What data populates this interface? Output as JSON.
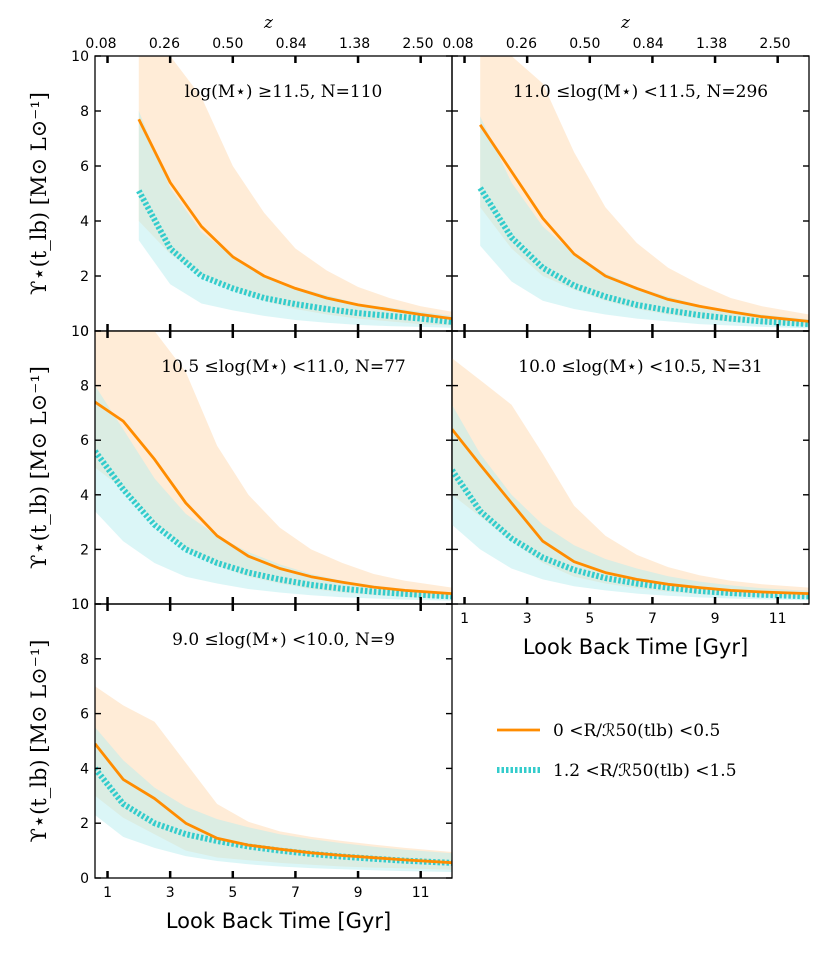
{
  "chart_data": {
    "type": "line",
    "top_axis_label": "z",
    "top_axis_ticks": [
      "0.08",
      "0.26",
      "0.50",
      "0.84",
      "1.38",
      "2.50"
    ],
    "xlabel": "Look Back Time [Gyr]",
    "ylabel": "ϒ⋆(t_lb) [M⊙ L⊙⁻¹]",
    "xlim": [
      0.6,
      12.0
    ],
    "ylim": [
      0,
      10
    ],
    "x_ticks": [
      1,
      3,
      5,
      7,
      9,
      11
    ],
    "x_tick_labels": [
      "1",
      "3",
      "5",
      "7",
      "9",
      "11"
    ],
    "y_ticks": [
      0,
      2,
      4,
      6,
      8,
      10
    ],
    "y_tick_labels": [
      "0",
      "2",
      "4",
      "6",
      "8",
      "10"
    ],
    "legend": [
      {
        "label": "0 <R/ℛ50(tlb) <0.5",
        "color": "#ff8c00",
        "style": "solid"
      },
      {
        "label": "1.2 <R/ℛ50(tlb) <1.5",
        "color": "#33cccc",
        "style": "dotted"
      }
    ],
    "colors": {
      "inner": "#ff8c00",
      "outer": "#33cccc",
      "inner_band": "#ffd9b0",
      "outer_band": "#b8eef0"
    },
    "panels": [
      {
        "title": "log(M⋆) ≥11.5, N=110",
        "x": [
          2.0,
          3.0,
          4.0,
          5.0,
          6.0,
          7.0,
          8.0,
          9.0,
          10.0,
          11.0,
          12.0
        ],
        "inner": [
          7.7,
          5.4,
          3.8,
          2.7,
          2.0,
          1.55,
          1.2,
          0.95,
          0.78,
          0.6,
          0.45
        ],
        "outer": [
          5.1,
          3.0,
          2.0,
          1.55,
          1.2,
          0.98,
          0.8,
          0.65,
          0.55,
          0.45,
          0.33
        ],
        "inner_lo": [
          4.0,
          2.8,
          2.0,
          1.5,
          1.1,
          0.8,
          0.6,
          0.45,
          0.35,
          0.25,
          0.2
        ],
        "inner_hi": [
          10.0,
          10.0,
          8.5,
          6.0,
          4.3,
          3.0,
          2.2,
          1.6,
          1.2,
          0.9,
          0.7
        ],
        "outer_lo": [
          3.3,
          1.7,
          1.0,
          0.75,
          0.55,
          0.4,
          0.3,
          0.22,
          0.18,
          0.15,
          0.12
        ],
        "outer_hi": [
          8.0,
          5.2,
          3.6,
          2.7,
          2.0,
          1.6,
          1.3,
          1.0,
          0.85,
          0.7,
          0.55
        ]
      },
      {
        "title": "11.0 ≤log(M⋆) <11.5, N=296",
        "x": [
          1.5,
          2.5,
          3.5,
          4.5,
          5.5,
          6.5,
          7.5,
          8.5,
          9.5,
          10.5,
          12.0
        ],
        "inner": [
          7.5,
          5.8,
          4.1,
          2.8,
          2.0,
          1.55,
          1.15,
          0.9,
          0.7,
          0.52,
          0.35
        ],
        "outer": [
          5.2,
          3.4,
          2.3,
          1.65,
          1.25,
          0.95,
          0.75,
          0.58,
          0.45,
          0.35,
          0.25
        ],
        "inner_lo": [
          4.5,
          3.0,
          2.0,
          1.5,
          1.1,
          0.8,
          0.6,
          0.45,
          0.33,
          0.25,
          0.18
        ],
        "inner_hi": [
          10.0,
          10.0,
          9.0,
          6.5,
          4.5,
          3.2,
          2.3,
          1.7,
          1.2,
          0.9,
          0.6
        ],
        "outer_lo": [
          3.1,
          1.8,
          1.1,
          0.8,
          0.6,
          0.45,
          0.35,
          0.25,
          0.2,
          0.15,
          0.1
        ],
        "outer_hi": [
          7.8,
          5.4,
          3.8,
          2.8,
          2.1,
          1.6,
          1.25,
          0.95,
          0.75,
          0.6,
          0.42
        ]
      },
      {
        "title": "10.5 ≤log(M⋆) <11.0, N=77",
        "x": [
          0.6,
          1.5,
          2.5,
          3.5,
          4.5,
          5.5,
          6.5,
          7.5,
          8.5,
          9.5,
          10.5,
          12.0
        ],
        "inner": [
          7.4,
          6.7,
          5.3,
          3.7,
          2.5,
          1.75,
          1.3,
          1.0,
          0.8,
          0.62,
          0.5,
          0.38
        ],
        "outer": [
          5.6,
          4.2,
          2.9,
          2.0,
          1.5,
          1.15,
          0.9,
          0.7,
          0.56,
          0.45,
          0.37,
          0.28
        ],
        "inner_lo": [
          5.0,
          4.2,
          3.0,
          2.0,
          1.4,
          1.0,
          0.75,
          0.55,
          0.42,
          0.33,
          0.26,
          0.2
        ],
        "inner_hi": [
          10.0,
          10.0,
          10.0,
          8.5,
          5.8,
          4.0,
          2.8,
          2.0,
          1.5,
          1.1,
          0.85,
          0.6
        ],
        "outer_lo": [
          3.4,
          2.3,
          1.5,
          1.0,
          0.75,
          0.55,
          0.42,
          0.32,
          0.25,
          0.2,
          0.16,
          0.12
        ],
        "outer_hi": [
          8.0,
          6.4,
          4.6,
          3.3,
          2.5,
          1.9,
          1.45,
          1.1,
          0.85,
          0.68,
          0.55,
          0.42
        ]
      },
      {
        "title": "10.0 ≤log(M⋆) <10.5, N=31",
        "x": [
          0.6,
          1.5,
          2.5,
          3.5,
          4.5,
          5.5,
          6.5,
          7.5,
          8.5,
          9.5,
          10.5,
          12.0
        ],
        "inner": [
          6.4,
          5.1,
          3.7,
          2.3,
          1.55,
          1.15,
          0.9,
          0.72,
          0.6,
          0.5,
          0.44,
          0.38
        ],
        "outer": [
          4.9,
          3.4,
          2.4,
          1.7,
          1.25,
          0.95,
          0.75,
          0.6,
          0.48,
          0.4,
          0.34,
          0.28
        ],
        "inner_lo": [
          4.0,
          3.2,
          2.3,
          1.5,
          1.0,
          0.75,
          0.58,
          0.45,
          0.36,
          0.3,
          0.26,
          0.22
        ],
        "inner_hi": [
          9.0,
          8.2,
          7.3,
          5.5,
          3.6,
          2.5,
          1.8,
          1.35,
          1.05,
          0.85,
          0.72,
          0.6
        ],
        "outer_lo": [
          2.9,
          2.0,
          1.3,
          0.9,
          0.65,
          0.5,
          0.38,
          0.3,
          0.24,
          0.2,
          0.17,
          0.14
        ],
        "outer_hi": [
          7.3,
          5.5,
          4.0,
          2.9,
          2.15,
          1.65,
          1.3,
          1.02,
          0.82,
          0.68,
          0.58,
          0.48
        ]
      },
      {
        "title": "9.0 ≤log(M⋆) <10.0, N=9",
        "x": [
          0.6,
          1.5,
          2.5,
          3.5,
          4.5,
          5.5,
          6.5,
          7.5,
          8.5,
          9.5,
          10.5,
          12.0
        ],
        "inner": [
          4.9,
          3.6,
          2.9,
          2.0,
          1.45,
          1.2,
          1.05,
          0.92,
          0.82,
          0.74,
          0.66,
          0.56
        ],
        "outer": [
          4.0,
          2.7,
          2.0,
          1.6,
          1.35,
          1.15,
          1.0,
          0.88,
          0.78,
          0.7,
          0.63,
          0.55
        ],
        "inner_lo": [
          3.0,
          2.2,
          1.6,
          1.0,
          0.75,
          0.65,
          0.55,
          0.48,
          0.42,
          0.38,
          0.35,
          0.3
        ],
        "inner_hi": [
          7.0,
          6.3,
          5.7,
          4.2,
          2.7,
          2.05,
          1.7,
          1.5,
          1.35,
          1.22,
          1.1,
          0.95
        ],
        "outer_lo": [
          2.3,
          1.5,
          1.1,
          0.8,
          0.62,
          0.5,
          0.42,
          0.36,
          0.32,
          0.28,
          0.25,
          0.22
        ],
        "outer_hi": [
          5.5,
          4.3,
          3.3,
          2.6,
          2.15,
          1.85,
          1.6,
          1.42,
          1.27,
          1.14,
          1.03,
          0.9
        ]
      }
    ]
  }
}
